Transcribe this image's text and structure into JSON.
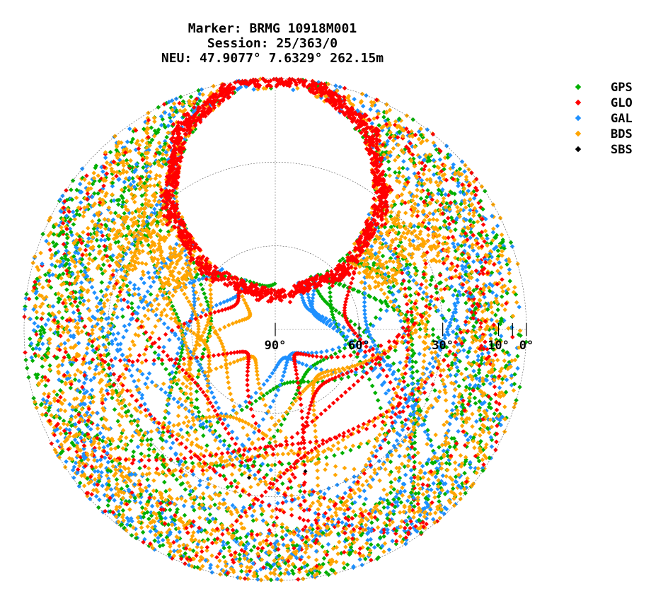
{
  "title_lines": [
    "Marker: BRMG 10918M001",
    "Session: 25/363/0",
    "NEU: 47.9077° 7.6329° 262.15m"
  ],
  "legend": [
    {
      "label": "GPS",
      "color": "#00b000"
    },
    {
      "label": "GLO",
      "color": "#ff0000"
    },
    {
      "label": "GAL",
      "color": "#1e90ff"
    },
    {
      "label": "BDS",
      "color": "#ffa500"
    },
    {
      "label": "SBS",
      "color": "#000000"
    }
  ],
  "chart_data": {
    "type": "scatter",
    "projection": "polar skyplot (elevation radial, azimuth angular, north up)",
    "elevation_tick_labels": [
      "90°",
      "60°",
      "30°",
      "10°",
      "0°"
    ],
    "elevation_ticks": [
      90,
      60,
      30,
      10,
      5,
      0
    ],
    "grid": true,
    "legend_placement": "top-right",
    "series": [
      {
        "name": "GPS",
        "color": "#00b000"
      },
      {
        "name": "GLO",
        "color": "#ff0000"
      },
      {
        "name": "GAL",
        "color": "#1e90ff"
      },
      {
        "name": "BDS",
        "color": "#ffa500"
      },
      {
        "name": "SBS",
        "color": "#000000"
      }
    ],
    "sbs_points": [
      {
        "azimuth": 190,
        "elevation": 36
      },
      {
        "azimuth": 168,
        "elevation": 38
      }
    ],
    "glonass_hole_max_elevation_center": 90
  }
}
